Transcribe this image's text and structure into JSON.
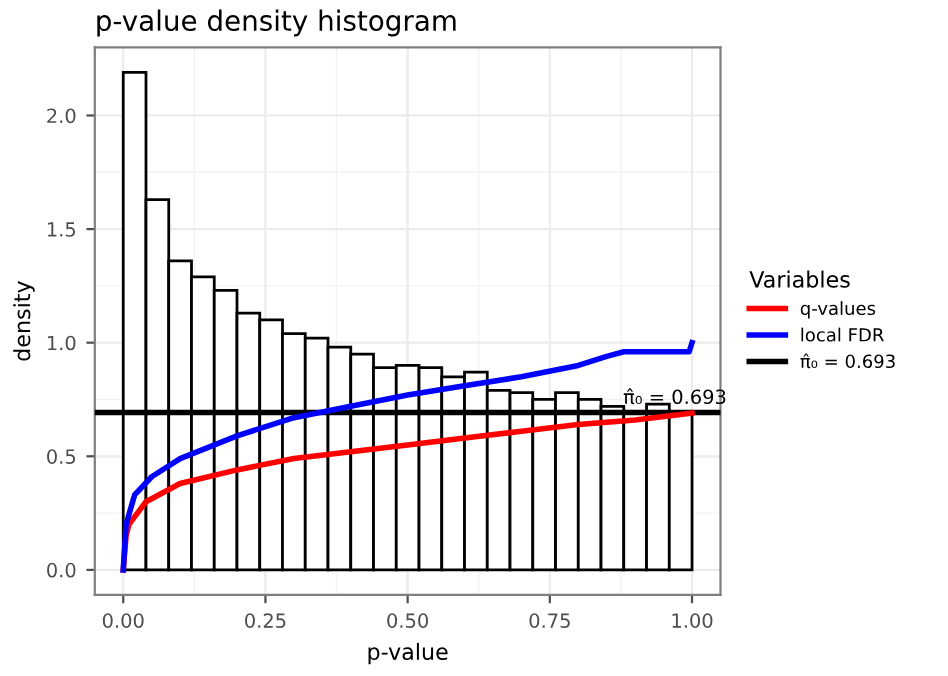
{
  "chart_data": {
    "type": "histogram",
    "title": "p-value density histogram",
    "xlabel": "p-value",
    "ylabel": "density",
    "legend_title": "Variables",
    "bins": [
      0,
      0.04,
      0.08,
      0.12,
      0.16,
      0.2,
      0.24,
      0.28,
      0.32,
      0.36,
      0.4,
      0.44,
      0.48,
      0.52,
      0.56,
      0.6,
      0.64,
      0.68,
      0.72,
      0.76,
      0.8,
      0.84,
      0.88,
      0.92,
      0.96,
      1.0
    ],
    "values": [
      2.19,
      1.63,
      1.36,
      1.29,
      1.23,
      1.13,
      1.1,
      1.04,
      1.02,
      0.98,
      0.95,
      0.89,
      0.9,
      0.89,
      0.85,
      0.87,
      0.79,
      0.78,
      0.75,
      0.78,
      0.75,
      0.72,
      0.69,
      0.73,
      0.69
    ],
    "series": [
      {
        "name": "q-values",
        "type": "line",
        "color": "#ff0000",
        "x": [
          0,
          0.005,
          0.01,
          0.04,
          0.1,
          0.2,
          0.3,
          0.4,
          0.5,
          0.6,
          0.7,
          0.8,
          0.9,
          1.0
        ],
        "values": [
          0,
          0.15,
          0.2,
          0.3,
          0.38,
          0.44,
          0.49,
          0.52,
          0.55,
          0.58,
          0.61,
          0.64,
          0.66,
          0.69
        ]
      },
      {
        "name": "local FDR",
        "type": "line",
        "color": "#0000ff",
        "x": [
          0,
          0.005,
          0.02,
          0.05,
          0.1,
          0.2,
          0.3,
          0.4,
          0.5,
          0.6,
          0.7,
          0.8,
          0.85,
          0.88,
          0.995,
          1.0
        ],
        "values": [
          0,
          0.2,
          0.33,
          0.41,
          0.49,
          0.59,
          0.67,
          0.72,
          0.77,
          0.81,
          0.85,
          0.9,
          0.94,
          0.96,
          0.96,
          1.0
        ]
      }
    ],
    "ref_lines": [
      {
        "axis": "y",
        "value": 0.693,
        "label": "π̂₀ = 0.693",
        "color": "#000000"
      }
    ],
    "xlim": [
      -0.05,
      1.05
    ],
    "xticks": [
      {
        "value": 0,
        "label": "0.00"
      },
      {
        "value": 0.25,
        "label": "0.25"
      },
      {
        "value": 0.5,
        "label": "0.50"
      },
      {
        "value": 0.75,
        "label": "0.75"
      },
      {
        "value": 1.0,
        "label": "1.00"
      }
    ],
    "ylim": [
      -0.11,
      2.3
    ],
    "yticks": [
      {
        "value": 0,
        "label": "0.0"
      },
      {
        "value": 0.5,
        "label": "0.5"
      },
      {
        "value": 1.0,
        "label": "1.0"
      },
      {
        "value": 1.5,
        "label": "1.5"
      },
      {
        "value": 2.0,
        "label": "2.0"
      }
    ],
    "grid": true,
    "legend": "right"
  }
}
